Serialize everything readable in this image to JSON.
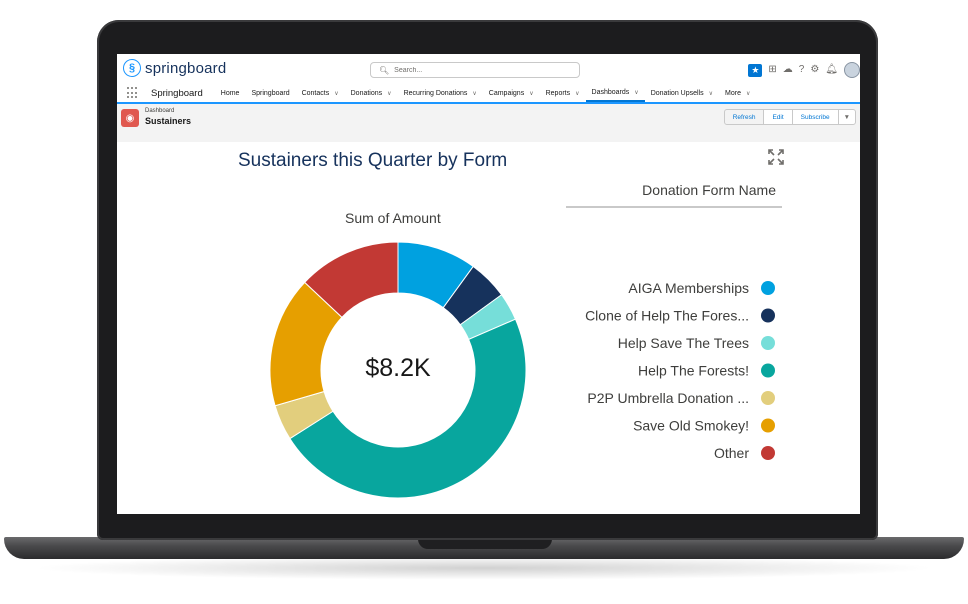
{
  "header": {
    "logo_text": "springboard",
    "search_placeholder": "Search..."
  },
  "nav": {
    "app_name": "Springboard",
    "items": [
      {
        "label": "Home",
        "dropdown": false
      },
      {
        "label": "Springboard",
        "dropdown": false
      },
      {
        "label": "Contacts",
        "dropdown": true
      },
      {
        "label": "Donations",
        "dropdown": true
      },
      {
        "label": "Recurring Donations",
        "dropdown": true
      },
      {
        "label": "Campaigns",
        "dropdown": true
      },
      {
        "label": "Reports",
        "dropdown": true
      },
      {
        "label": "Dashboards",
        "dropdown": true,
        "active": true
      },
      {
        "label": "Donation Upsells",
        "dropdown": true
      },
      {
        "label": "More",
        "dropdown": true
      }
    ]
  },
  "page": {
    "breadcrumb": "Dashboard",
    "title": "Sustainers",
    "buttons": {
      "refresh": "Refresh",
      "edit": "Edit",
      "subscribe": "Subscribe"
    }
  },
  "chart_data": {
    "type": "pie",
    "title": "Sustainers this Quarter by Form",
    "subtitle": "Sum of Amount",
    "center_label": "$8.2K",
    "legend_title": "Donation Form Name",
    "legend_placement": "right",
    "slices": [
      {
        "label": "AIGA Memberships",
        "value": 10.0,
        "color": "#00a1e0"
      },
      {
        "label": "Clone of Help The Fores...",
        "value": 5.0,
        "color": "#16325c"
      },
      {
        "label": "Help Save The Trees",
        "value": 3.5,
        "color": "#76ded9"
      },
      {
        "label": "Help The Forests!",
        "value": 47.5,
        "color": "#08a69e"
      },
      {
        "label": "P2P Umbrella Donation ...",
        "value": 4.5,
        "color": "#e2ce7d"
      },
      {
        "label": "Save Old Smokey!",
        "value": 16.5,
        "color": "#e69f00"
      },
      {
        "label": "Other",
        "value": 13.0,
        "color": "#c23934"
      }
    ]
  }
}
